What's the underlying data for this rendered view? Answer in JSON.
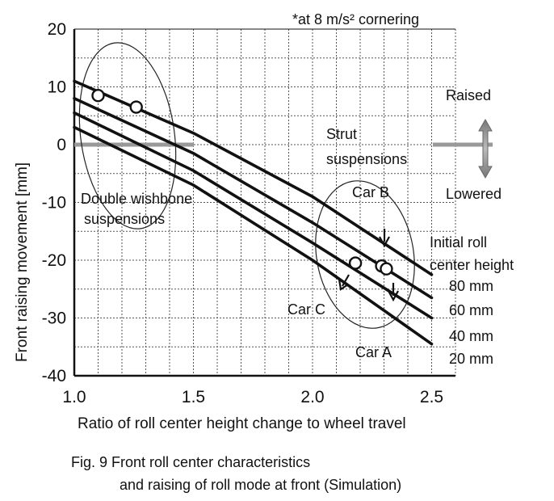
{
  "chart_data": {
    "type": "line",
    "note": "*at 8 m/s² cornering",
    "xlabel": "Ratio of roll center height change to wheel travel",
    "ylabel": "Front raising movement [mm]",
    "xlim": [
      1.0,
      2.6
    ],
    "ylim": [
      -40,
      20
    ],
    "x_ticks": [
      "1.0",
      "1.5",
      "2.0",
      "2.5"
    ],
    "y_ticks": [
      "20",
      "10",
      "0",
      "-10",
      "-20",
      "-30",
      "-40"
    ],
    "grid": true,
    "legend_title": "Initial roll center height",
    "series": [
      {
        "name": "80 mm",
        "x": [
          1.0,
          1.5,
          2.0,
          2.5
        ],
        "y": [
          11,
          2,
          -9,
          -22.5
        ]
      },
      {
        "name": "60 mm",
        "x": [
          1.0,
          1.5,
          2.0,
          2.5
        ],
        "y": [
          8,
          -1.5,
          -13.5,
          -26.5
        ]
      },
      {
        "name": "40 mm",
        "x": [
          1.0,
          1.5,
          2.0,
          2.5
        ],
        "y": [
          5.5,
          -4.5,
          -17,
          -30
        ]
      },
      {
        "name": "20 mm",
        "x": [
          1.0,
          1.5,
          2.0,
          2.5
        ],
        "y": [
          3,
          -7,
          -20,
          -34.5
        ]
      }
    ],
    "points": [
      {
        "name": "Double wishbone point 1",
        "x": 1.1,
        "y": 8.5
      },
      {
        "name": "Double wishbone point 2",
        "x": 1.26,
        "y": 6.5
      },
      {
        "name": "Car C",
        "x": 2.18,
        "y": -20.5
      },
      {
        "name": "Car B",
        "x": 2.29,
        "y": -21
      },
      {
        "name": "Car A",
        "x": 2.31,
        "y": -21.5
      }
    ],
    "annotations": {
      "raised": "Raised",
      "lowered": "Lowered",
      "strut_line1": "Strut",
      "strut_line2": "suspensions",
      "dw_line1": "Double wishbone",
      "dw_line2": "suspensions",
      "car_a": "Car A",
      "car_b": "Car B",
      "car_c": "Car C",
      "legend_line1": "Initial roll",
      "legend_line2": "center height"
    }
  },
  "caption": {
    "line1": "Fig. 9   Front roll center characteristics",
    "line2": "and raising of roll mode at front (Simulation)"
  }
}
